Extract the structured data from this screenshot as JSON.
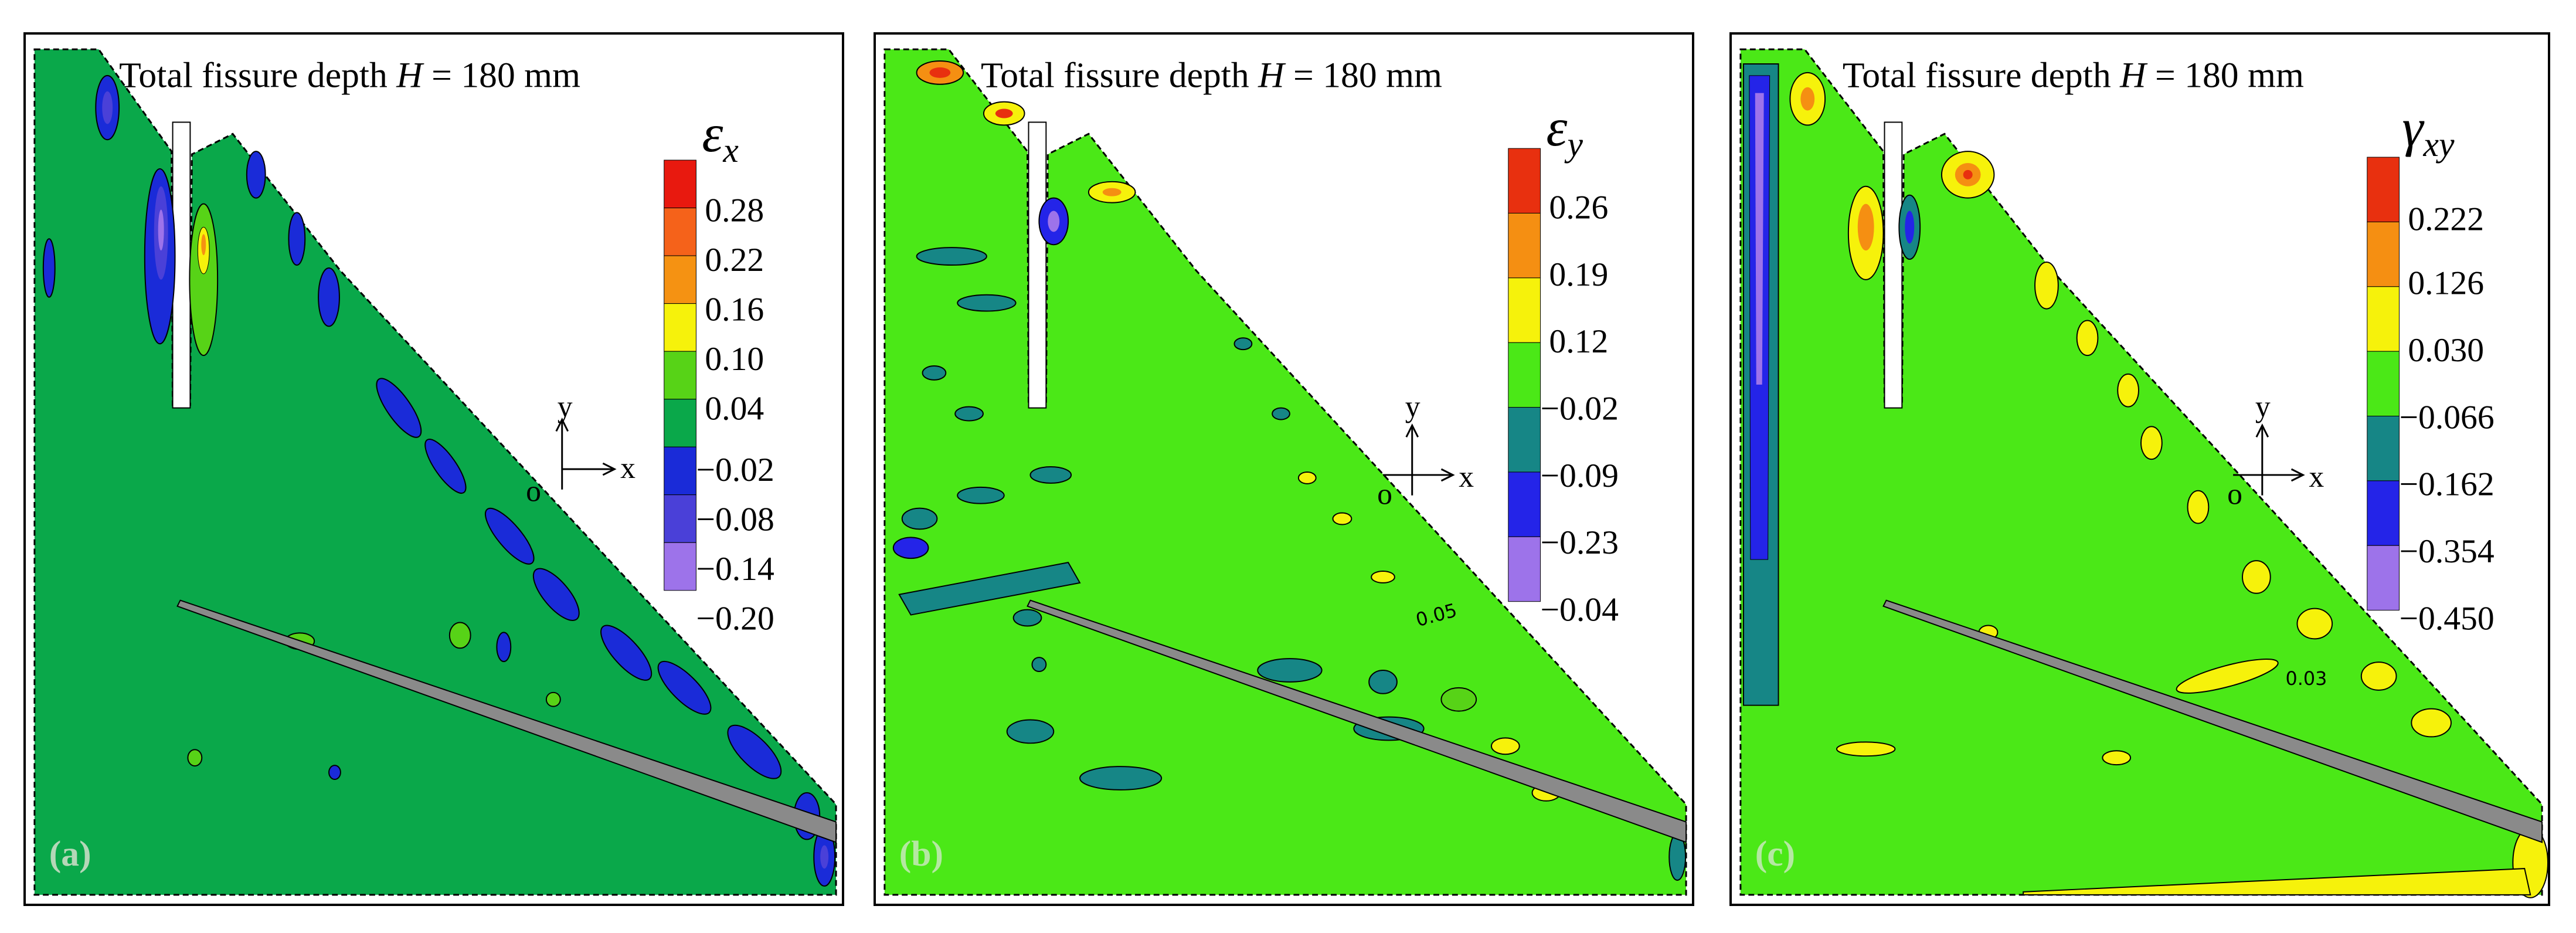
{
  "panels": [
    {
      "id": "a",
      "label": "(a)",
      "title_prefix": "Total fissure depth ",
      "title_var": "H",
      "title_suffix": " = 180 mm",
      "symbol": "ε",
      "subscript": "x",
      "legend_values": [
        "0.28",
        "0.22",
        "0.16",
        "0.10",
        "0.04",
        "−0.02",
        "−0.08",
        "−0.14",
        "−0.20"
      ],
      "legend_colors": [
        "#e8190f",
        "#f5621a",
        "#f59212",
        "#f6f20b",
        "#57d317",
        "#0aa84a",
        "#1a2bd8",
        "#4a40d8",
        "#9d73ea"
      ],
      "background_color": "#0aa84a",
      "axis_x": "x",
      "axis_y": "y",
      "axis_o": "o",
      "contour_label": ""
    },
    {
      "id": "b",
      "label": "(b)",
      "title_prefix": "Total fissure depth ",
      "title_var": "H",
      "title_suffix": " = 180 mm",
      "symbol": "ε",
      "subscript": "y",
      "legend_values": [
        "0.26",
        "0.19",
        "0.12",
        "−0.02",
        "−0.09",
        "−0.23",
        "−0.04"
      ],
      "legend_colors": [
        "#e8300f",
        "#f58f12",
        "#f6f20b",
        "#4be817",
        "#168686",
        "#2424e8",
        "#9d73ea"
      ],
      "background_color": "#4be817",
      "axis_x": "x",
      "axis_y": "y",
      "axis_o": "o",
      "contour_label": "0.05"
    },
    {
      "id": "c",
      "label": "(c)",
      "title_prefix": "Total fissure depth ",
      "title_var": "H",
      "title_suffix": " = 180 mm",
      "symbol": "γ",
      "subscript": "xy",
      "legend_values": [
        "0.222",
        "0.126",
        "0.030",
        "−0.066",
        "−0.162",
        "−0.354",
        "−0.450"
      ],
      "legend_colors": [
        "#e8300f",
        "#f58f12",
        "#f6f20b",
        "#4be817",
        "#168686",
        "#2424e8",
        "#9d73ea"
      ],
      "background_color": "#4be817",
      "axis_x": "x",
      "axis_y": "y",
      "axis_o": "o",
      "contour_label": "0.03"
    }
  ]
}
